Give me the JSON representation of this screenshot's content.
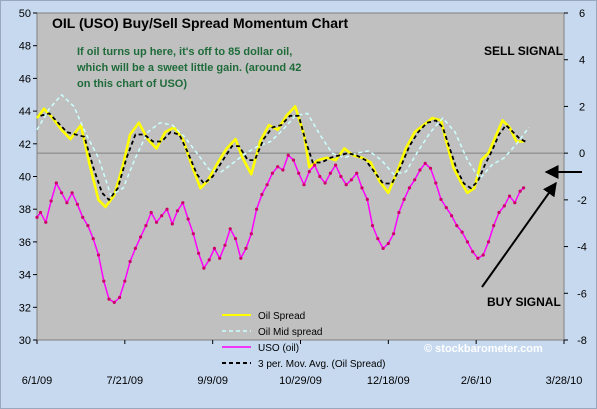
{
  "chart_data": {
    "type": "line",
    "title": "OIL (USO) Buy/Sell Spread Momentum Chart",
    "annotation_lines": [
      "If oil turns up here, it's off to 85 dollar oil,",
      "which will be a sweet little gain.  (around 42",
      "on this chart of USO)"
    ],
    "sell_signal_label": "SELL SIGNAL",
    "buy_signal_label": "BUY SIGNAL",
    "watermark": "© stockbarometer.com",
    "x_tick_labels": [
      "6/1/09",
      "7/21/09",
      "9/9/09",
      "10/29/09",
      "12/18/09",
      "2/6/10",
      "3/28/10"
    ],
    "x_range": [
      "6/1/09",
      "3/28/10"
    ],
    "y_left": {
      "range": [
        30,
        50
      ],
      "ticks": [
        30,
        32,
        34,
        36,
        38,
        40,
        42,
        44,
        46,
        48,
        50
      ]
    },
    "y_right": {
      "range": [
        -8,
        6
      ],
      "ticks": [
        -8,
        -6,
        -4,
        -2,
        0,
        2,
        4,
        6
      ]
    },
    "grid": false,
    "reference_line_right_axis": 0,
    "legend_position": "bottom-center",
    "colors": {
      "plot_bg": "#c0c0c0",
      "frame_bg": "#c7d9ef",
      "oil_spread": "#ffff00",
      "oil_mid_spread": "#ccffff",
      "uso": "#ff00ff",
      "moving_avg": "#000000"
    },
    "series": [
      {
        "name": "Oil Spread",
        "axis": "right",
        "points": [
          [
            "6/1/09",
            1.5
          ],
          [
            "6/5/09",
            1.9
          ],
          [
            "6/10/09",
            1.5
          ],
          [
            "6/15/09",
            1.0
          ],
          [
            "6/20/09",
            0.6
          ],
          [
            "6/26/09",
            1.2
          ],
          [
            "7/1/09",
            -0.5
          ],
          [
            "7/6/09",
            -2.0
          ],
          [
            "7/10/09",
            -2.3
          ],
          [
            "7/15/09",
            -1.8
          ],
          [
            "7/20/09",
            -0.5
          ],
          [
            "7/24/09",
            0.8
          ],
          [
            "7/29/09",
            1.3
          ],
          [
            "8/3/09",
            0.6
          ],
          [
            "8/8/09",
            0.2
          ],
          [
            "8/13/09",
            0.9
          ],
          [
            "8/18/09",
            1.1
          ],
          [
            "8/23/09",
            0.6
          ],
          [
            "8/28/09",
            -0.5
          ],
          [
            "9/2/09",
            -1.5
          ],
          [
            "9/6/09",
            -1.2
          ],
          [
            "9/12/09",
            -0.4
          ],
          [
            "9/17/09",
            0.2
          ],
          [
            "9/22/09",
            0.6
          ],
          [
            "9/26/09",
            -0.2
          ],
          [
            "10/1/09",
            -0.9
          ],
          [
            "10/6/09",
            0.5
          ],
          [
            "10/11/09",
            1.2
          ],
          [
            "10/16/09",
            1.0
          ],
          [
            "10/21/09",
            1.6
          ],
          [
            "10/26/09",
            2.0
          ],
          [
            "10/31/09",
            0.8
          ],
          [
            "11/3/09",
            -0.6
          ],
          [
            "11/8/09",
            -0.3
          ],
          [
            "11/13/09",
            -0.2
          ],
          [
            "11/18/09",
            -0.3
          ],
          [
            "11/23/09",
            0.2
          ],
          [
            "11/28/09",
            -0.1
          ],
          [
            "12/3/09",
            -0.2
          ],
          [
            "12/8/09",
            -0.4
          ],
          [
            "12/13/09",
            -1.2
          ],
          [
            "12/18/09",
            -1.7
          ],
          [
            "12/23/09",
            -0.8
          ],
          [
            "12/28/09",
            0.2
          ],
          [
            "1/2/10",
            0.9
          ],
          [
            "1/7/10",
            1.2
          ],
          [
            "1/12/10",
            1.5
          ],
          [
            "1/17/10",
            1.4
          ],
          [
            "1/20/10",
            0.5
          ],
          [
            "1/24/10",
            -0.6
          ],
          [
            "1/28/10",
            -1.2
          ],
          [
            "2/1/10",
            -1.7
          ],
          [
            "2/5/10",
            -1.5
          ],
          [
            "2/9/10",
            -0.3
          ],
          [
            "2/13/10",
            0.0
          ],
          [
            "2/17/10",
            0.7
          ],
          [
            "2/21/10",
            1.4
          ],
          [
            "2/25/10",
            1.1
          ],
          [
            "3/1/10",
            0.5
          ],
          [
            "3/5/10",
            0.5
          ]
        ]
      },
      {
        "name": "Oil Mid spread",
        "axis": "right",
        "points": [
          [
            "6/1/09",
            1.0
          ],
          [
            "6/8/09",
            1.9
          ],
          [
            "6/15/09",
            2.5
          ],
          [
            "6/22/09",
            2.0
          ],
          [
            "6/29/09",
            0.8
          ],
          [
            "7/6/09",
            -0.2
          ],
          [
            "7/13/09",
            -1.8
          ],
          [
            "7/20/09",
            -1.5
          ],
          [
            "7/27/09",
            -0.2
          ],
          [
            "8/3/09",
            0.9
          ],
          [
            "8/10/09",
            1.3
          ],
          [
            "8/17/09",
            1.2
          ],
          [
            "8/24/09",
            0.7
          ],
          [
            "8/31/09",
            0.0
          ],
          [
            "9/7/09",
            -0.7
          ],
          [
            "9/14/09",
            -0.8
          ],
          [
            "9/21/09",
            -0.4
          ],
          [
            "9/28/09",
            0.0
          ],
          [
            "10/5/09",
            0.3
          ],
          [
            "10/12/09",
            0.5
          ],
          [
            "10/19/09",
            1.0
          ],
          [
            "10/26/09",
            1.6
          ],
          [
            "11/2/09",
            1.7
          ],
          [
            "11/9/09",
            0.8
          ],
          [
            "11/16/09",
            0.0
          ],
          [
            "11/23/09",
            -0.2
          ],
          [
            "11/30/09",
            0.0
          ],
          [
            "12/7/09",
            0.1
          ],
          [
            "12/14/09",
            -0.3
          ],
          [
            "12/21/09",
            -0.9
          ],
          [
            "12/28/09",
            -0.8
          ],
          [
            "1/4/10",
            0.1
          ],
          [
            "1/11/10",
            0.9
          ],
          [
            "1/18/10",
            1.5
          ],
          [
            "1/25/10",
            0.9
          ],
          [
            "2/1/10",
            -0.3
          ],
          [
            "2/8/10",
            -1.1
          ],
          [
            "2/15/10",
            -0.5
          ],
          [
            "2/22/10",
            -0.2
          ],
          [
            "3/1/10",
            0.4
          ],
          [
            "3/8/10",
            1.1
          ]
        ]
      },
      {
        "name": "USO (oil)",
        "axis": "left",
        "points": [
          [
            "6/1/09",
            37.5
          ],
          [
            "6/3/09",
            37.8
          ],
          [
            "6/6/09",
            37.2
          ],
          [
            "6/9/09",
            38.5
          ],
          [
            "6/12/09",
            39.6
          ],
          [
            "6/15/09",
            39.0
          ],
          [
            "6/18/09",
            38.4
          ],
          [
            "6/21/09",
            39.0
          ],
          [
            "6/24/09",
            38.3
          ],
          [
            "6/27/09",
            37.5
          ],
          [
            "6/30/09",
            37.0
          ],
          [
            "7/3/09",
            36.2
          ],
          [
            "7/6/09",
            35.2
          ],
          [
            "7/9/09",
            33.6
          ],
          [
            "7/12/09",
            32.5
          ],
          [
            "7/15/09",
            32.3
          ],
          [
            "7/18/09",
            32.6
          ],
          [
            "7/21/09",
            33.6
          ],
          [
            "7/24/09",
            34.8
          ],
          [
            "7/27/09",
            35.6
          ],
          [
            "7/30/09",
            36.3
          ],
          [
            "8/2/09",
            37.0
          ],
          [
            "8/5/09",
            37.8
          ],
          [
            "8/8/09",
            37.2
          ],
          [
            "8/11/09",
            37.6
          ],
          [
            "8/14/09",
            38.0
          ],
          [
            "8/17/09",
            37.1
          ],
          [
            "8/20/09",
            37.9
          ],
          [
            "8/23/09",
            38.4
          ],
          [
            "8/26/09",
            37.4
          ],
          [
            "8/29/09",
            36.5
          ],
          [
            "9/1/09",
            35.3
          ],
          [
            "9/4/09",
            34.4
          ],
          [
            "9/7/09",
            34.9
          ],
          [
            "9/10/09",
            35.6
          ],
          [
            "9/13/09",
            35.0
          ],
          [
            "9/16/09",
            35.8
          ],
          [
            "9/19/09",
            36.8
          ],
          [
            "9/22/09",
            36.2
          ],
          [
            "9/25/09",
            35.0
          ],
          [
            "9/28/09",
            35.6
          ],
          [
            "10/1/09",
            36.5
          ],
          [
            "10/4/09",
            38.0
          ],
          [
            "10/7/09",
            38.9
          ],
          [
            "10/10/09",
            39.5
          ],
          [
            "10/13/09",
            40.2
          ],
          [
            "10/16/09",
            40.6
          ],
          [
            "10/19/09",
            40.4
          ],
          [
            "10/22/09",
            41.3
          ],
          [
            "10/25/09",
            41.0
          ],
          [
            "10/28/09",
            40.2
          ],
          [
            "10/31/09",
            39.5
          ],
          [
            "11/3/09",
            40.3
          ],
          [
            "11/6/09",
            40.7
          ],
          [
            "11/9/09",
            40.0
          ],
          [
            "11/12/09",
            39.6
          ],
          [
            "11/15/09",
            40.2
          ],
          [
            "11/18/09",
            40.7
          ],
          [
            "11/21/09",
            40.0
          ],
          [
            "11/24/09",
            39.5
          ],
          [
            "11/27/09",
            39.8
          ],
          [
            "11/30/09",
            40.2
          ],
          [
            "12/3/09",
            39.3
          ],
          [
            "12/6/09",
            38.6
          ],
          [
            "12/9/09",
            37.0
          ],
          [
            "12/12/09",
            36.2
          ],
          [
            "12/15/09",
            35.6
          ],
          [
            "12/18/09",
            35.9
          ],
          [
            "12/21/09",
            36.5
          ],
          [
            "12/24/09",
            37.8
          ],
          [
            "12/27/09",
            38.6
          ],
          [
            "12/30/09",
            39.3
          ],
          [
            "1/2/10",
            39.8
          ],
          [
            "1/5/10",
            40.4
          ],
          [
            "1/8/10",
            40.8
          ],
          [
            "1/11/10",
            40.5
          ],
          [
            "1/14/10",
            39.6
          ],
          [
            "1/17/10",
            38.6
          ],
          [
            "1/20/10",
            38.1
          ],
          [
            "1/23/10",
            37.6
          ],
          [
            "1/26/10",
            37.0
          ],
          [
            "1/29/10",
            36.6
          ],
          [
            "2/1/10",
            36.0
          ],
          [
            "2/4/10",
            35.4
          ],
          [
            "2/7/10",
            35.0
          ],
          [
            "2/10/10",
            35.2
          ],
          [
            "2/13/10",
            36.0
          ],
          [
            "2/16/10",
            37.0
          ],
          [
            "2/19/10",
            37.8
          ],
          [
            "2/22/10",
            38.2
          ],
          [
            "2/25/10",
            38.8
          ],
          [
            "2/28/10",
            38.4
          ],
          [
            "3/3/10",
            39.1
          ],
          [
            "3/5/10",
            39.3
          ]
        ]
      },
      {
        "name": "3 per. Mov. Avg. (Oil Spread)",
        "axis": "right",
        "points": [
          [
            "6/3/09",
            1.6
          ],
          [
            "6/8/09",
            1.7
          ],
          [
            "6/13/09",
            1.3
          ],
          [
            "6/18/09",
            0.9
          ],
          [
            "6/23/09",
            0.8
          ],
          [
            "6/28/09",
            0.7
          ],
          [
            "7/3/09",
            -0.6
          ],
          [
            "7/8/09",
            -1.7
          ],
          [
            "7/12/09",
            -2.0
          ],
          [
            "7/17/09",
            -1.5
          ],
          [
            "7/22/09",
            -0.2
          ],
          [
            "7/27/09",
            0.8
          ],
          [
            "8/1/09",
            0.8
          ],
          [
            "8/6/09",
            0.5
          ],
          [
            "8/11/09",
            0.5
          ],
          [
            "8/16/09",
            0.9
          ],
          [
            "8/21/09",
            0.8
          ],
          [
            "8/26/09",
            0.0
          ],
          [
            "8/31/09",
            -0.9
          ],
          [
            "9/4/09",
            -1.3
          ],
          [
            "9/9/09",
            -1.0
          ],
          [
            "9/14/09",
            -0.4
          ],
          [
            "9/20/09",
            0.3
          ],
          [
            "9/24/09",
            0.3
          ],
          [
            "9/29/09",
            -0.3
          ],
          [
            "10/3/09",
            -0.3
          ],
          [
            "10/8/09",
            0.6
          ],
          [
            "10/13/09",
            1.1
          ],
          [
            "10/18/09",
            1.2
          ],
          [
            "10/23/09",
            1.6
          ],
          [
            "10/28/09",
            1.6
          ],
          [
            "11/1/09",
            0.5
          ],
          [
            "11/5/09",
            -0.4
          ],
          [
            "11/10/09",
            -0.4
          ],
          [
            "11/15/09",
            -0.2
          ],
          [
            "11/20/09",
            -0.1
          ],
          [
            "11/25/09",
            0.0
          ],
          [
            "11/30/09",
            -0.1
          ],
          [
            "12/5/09",
            -0.3
          ],
          [
            "12/10/09",
            -0.8
          ],
          [
            "12/15/09",
            -1.3
          ],
          [
            "12/20/09",
            -1.3
          ],
          [
            "12/25/09",
            -0.6
          ],
          [
            "12/30/09",
            0.3
          ],
          [
            "1/4/10",
            0.9
          ],
          [
            "1/9/10",
            1.3
          ],
          [
            "1/14/10",
            1.4
          ],
          [
            "1/18/10",
            1.1
          ],
          [
            "1/22/10",
            0.2
          ],
          [
            "1/26/10",
            -0.7
          ],
          [
            "1/30/10",
            -1.3
          ],
          [
            "2/3/10",
            -1.5
          ],
          [
            "2/7/10",
            -1.2
          ],
          [
            "2/11/10",
            -0.5
          ],
          [
            "2/15/10",
            0.1
          ],
          [
            "2/19/10",
            0.8
          ],
          [
            "2/23/10",
            1.2
          ],
          [
            "2/27/10",
            0.9
          ],
          [
            "3/3/10",
            0.6
          ],
          [
            "3/6/10",
            0.5
          ]
        ]
      }
    ]
  }
}
